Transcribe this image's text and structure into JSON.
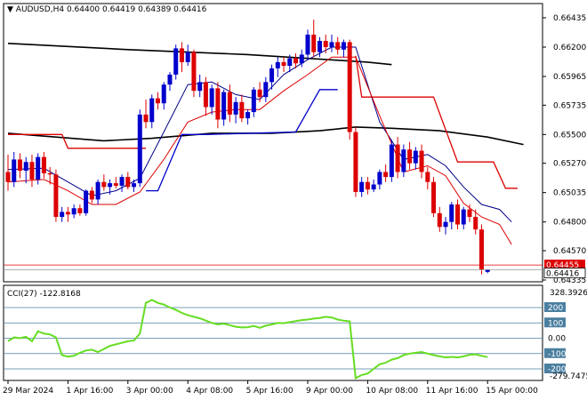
{
  "chart_data": {
    "type": "candlestick",
    "symbol_label": "AUDUSD,H4",
    "ohlc_readout": "0.64400 0.64419 0.64389 0.64416",
    "price_axis": {
      "ylim": [
        0.64335,
        0.66475
      ],
      "ticks": [
        "0.66435",
        "0.66200",
        "0.65965",
        "0.65735",
        "0.65500",
        "0.65270",
        "0.65035",
        "0.64800",
        "0.64570",
        "0.64335"
      ],
      "tick_values": [
        0.66435,
        0.662,
        0.65965,
        0.65735,
        0.655,
        0.6527,
        0.65035,
        0.648,
        0.6457,
        0.64335
      ],
      "last_price_label": "0.64416",
      "ref_price_label": "0.64455",
      "last_price": 0.64416,
      "ref_price": 0.64455
    },
    "time_axis": {
      "labels": [
        "29 Mar 2024",
        "1 Apr 16:00",
        "3 Apr 00:00",
        "4 Apr 08:00",
        "5 Apr 16:00",
        "9 Apr 00:00",
        "10 Apr 08:00",
        "11 Apr 16:00",
        "15 Apr 00:00"
      ],
      "label_bar_index": [
        0,
        10,
        20,
        30,
        40,
        50,
        60,
        70,
        80
      ]
    },
    "candles": [
      {
        "o": 0.652,
        "h": 0.6534,
        "l": 0.6505,
        "c": 0.6512
      },
      {
        "o": 0.6512,
        "h": 0.6536,
        "l": 0.6508,
        "c": 0.653
      },
      {
        "o": 0.653,
        "h": 0.6535,
        "l": 0.6515,
        "c": 0.6521
      },
      {
        "o": 0.6521,
        "h": 0.6532,
        "l": 0.6511,
        "c": 0.6528
      },
      {
        "o": 0.6528,
        "h": 0.6534,
        "l": 0.6508,
        "c": 0.6514
      },
      {
        "o": 0.6514,
        "h": 0.6535,
        "l": 0.651,
        "c": 0.6532
      },
      {
        "o": 0.6532,
        "h": 0.6536,
        "l": 0.6515,
        "c": 0.6519
      },
      {
        "o": 0.6519,
        "h": 0.6524,
        "l": 0.651,
        "c": 0.6518
      },
      {
        "o": 0.6518,
        "h": 0.6522,
        "l": 0.648,
        "c": 0.6484
      },
      {
        "o": 0.6484,
        "h": 0.6492,
        "l": 0.648,
        "c": 0.6488
      },
      {
        "o": 0.6488,
        "h": 0.6492,
        "l": 0.648,
        "c": 0.6486
      },
      {
        "o": 0.6486,
        "h": 0.6494,
        "l": 0.6483,
        "c": 0.6491
      },
      {
        "o": 0.6491,
        "h": 0.6494,
        "l": 0.6485,
        "c": 0.6487
      },
      {
        "o": 0.6487,
        "h": 0.6506,
        "l": 0.6485,
        "c": 0.6505
      },
      {
        "o": 0.6505,
        "h": 0.6508,
        "l": 0.6495,
        "c": 0.6498
      },
      {
        "o": 0.6498,
        "h": 0.6514,
        "l": 0.6494,
        "c": 0.6512
      },
      {
        "o": 0.6512,
        "h": 0.6518,
        "l": 0.6505,
        "c": 0.6508
      },
      {
        "o": 0.6508,
        "h": 0.6514,
        "l": 0.6502,
        "c": 0.6511
      },
      {
        "o": 0.6511,
        "h": 0.6516,
        "l": 0.6507,
        "c": 0.6509
      },
      {
        "o": 0.6509,
        "h": 0.6518,
        "l": 0.6504,
        "c": 0.6516
      },
      {
        "o": 0.6516,
        "h": 0.652,
        "l": 0.6506,
        "c": 0.6508
      },
      {
        "o": 0.6508,
        "h": 0.6514,
        "l": 0.6504,
        "c": 0.6511
      },
      {
        "o": 0.6511,
        "h": 0.657,
        "l": 0.6508,
        "c": 0.6566
      },
      {
        "o": 0.6566,
        "h": 0.6578,
        "l": 0.6555,
        "c": 0.656
      },
      {
        "o": 0.656,
        "h": 0.6582,
        "l": 0.6555,
        "c": 0.6579
      },
      {
        "o": 0.6579,
        "h": 0.6584,
        "l": 0.657,
        "c": 0.6575
      },
      {
        "o": 0.6575,
        "h": 0.6592,
        "l": 0.657,
        "c": 0.659
      },
      {
        "o": 0.659,
        "h": 0.66,
        "l": 0.6585,
        "c": 0.6598
      },
      {
        "o": 0.6598,
        "h": 0.6622,
        "l": 0.6594,
        "c": 0.6619
      },
      {
        "o": 0.6619,
        "h": 0.6624,
        "l": 0.66,
        "c": 0.6608
      },
      {
        "o": 0.6608,
        "h": 0.6622,
        "l": 0.6605,
        "c": 0.6616
      },
      {
        "o": 0.6616,
        "h": 0.6618,
        "l": 0.658,
        "c": 0.6585
      },
      {
        "o": 0.6585,
        "h": 0.6598,
        "l": 0.658,
        "c": 0.6592
      },
      {
        "o": 0.6592,
        "h": 0.6596,
        "l": 0.6565,
        "c": 0.6572
      },
      {
        "o": 0.6572,
        "h": 0.659,
        "l": 0.6566,
        "c": 0.6587
      },
      {
        "o": 0.6587,
        "h": 0.6592,
        "l": 0.6555,
        "c": 0.6562
      },
      {
        "o": 0.6562,
        "h": 0.6586,
        "l": 0.6557,
        "c": 0.6584
      },
      {
        "o": 0.6584,
        "h": 0.659,
        "l": 0.656,
        "c": 0.6566
      },
      {
        "o": 0.6566,
        "h": 0.658,
        "l": 0.6559,
        "c": 0.6576
      },
      {
        "o": 0.6576,
        "h": 0.6582,
        "l": 0.656,
        "c": 0.6563
      },
      {
        "o": 0.6563,
        "h": 0.657,
        "l": 0.6558,
        "c": 0.6568
      },
      {
        "o": 0.6568,
        "h": 0.6588,
        "l": 0.6564,
        "c": 0.6586
      },
      {
        "o": 0.6586,
        "h": 0.6592,
        "l": 0.6576,
        "c": 0.658
      },
      {
        "o": 0.658,
        "h": 0.6596,
        "l": 0.6576,
        "c": 0.6592
      },
      {
        "o": 0.6592,
        "h": 0.6606,
        "l": 0.6586,
        "c": 0.6603
      },
      {
        "o": 0.6603,
        "h": 0.6612,
        "l": 0.6596,
        "c": 0.6608
      },
      {
        "o": 0.6608,
        "h": 0.6612,
        "l": 0.66,
        "c": 0.6605
      },
      {
        "o": 0.6605,
        "h": 0.6614,
        "l": 0.66,
        "c": 0.6611
      },
      {
        "o": 0.6611,
        "h": 0.6615,
        "l": 0.6603,
        "c": 0.6607
      },
      {
        "o": 0.6607,
        "h": 0.6618,
        "l": 0.6604,
        "c": 0.6614
      },
      {
        "o": 0.6614,
        "h": 0.6634,
        "l": 0.661,
        "c": 0.663
      },
      {
        "o": 0.663,
        "h": 0.6642,
        "l": 0.6612,
        "c": 0.6616
      },
      {
        "o": 0.6616,
        "h": 0.6628,
        "l": 0.6612,
        "c": 0.6625
      },
      {
        "o": 0.6625,
        "h": 0.663,
        "l": 0.6615,
        "c": 0.662
      },
      {
        "o": 0.662,
        "h": 0.663,
        "l": 0.6616,
        "c": 0.6624
      },
      {
        "o": 0.6624,
        "h": 0.6628,
        "l": 0.6614,
        "c": 0.6618
      },
      {
        "o": 0.6618,
        "h": 0.6626,
        "l": 0.6612,
        "c": 0.6624
      },
      {
        "o": 0.6624,
        "h": 0.6626,
        "l": 0.6546,
        "c": 0.6552
      },
      {
        "o": 0.6552,
        "h": 0.6556,
        "l": 0.65,
        "c": 0.6504
      },
      {
        "o": 0.6504,
        "h": 0.6516,
        "l": 0.65,
        "c": 0.6512
      },
      {
        "o": 0.6512,
        "h": 0.6516,
        "l": 0.6502,
        "c": 0.6506
      },
      {
        "o": 0.6506,
        "h": 0.6514,
        "l": 0.6504,
        "c": 0.651
      },
      {
        "o": 0.651,
        "h": 0.6522,
        "l": 0.6506,
        "c": 0.652
      },
      {
        "o": 0.652,
        "h": 0.6526,
        "l": 0.6512,
        "c": 0.6516
      },
      {
        "o": 0.6516,
        "h": 0.6546,
        "l": 0.6512,
        "c": 0.6542
      },
      {
        "o": 0.6542,
        "h": 0.6548,
        "l": 0.6515,
        "c": 0.652
      },
      {
        "o": 0.652,
        "h": 0.6542,
        "l": 0.6516,
        "c": 0.6538
      },
      {
        "o": 0.6538,
        "h": 0.6544,
        "l": 0.6522,
        "c": 0.6527
      },
      {
        "o": 0.6527,
        "h": 0.654,
        "l": 0.6522,
        "c": 0.6537
      },
      {
        "o": 0.6537,
        "h": 0.6542,
        "l": 0.6515,
        "c": 0.652
      },
      {
        "o": 0.652,
        "h": 0.6524,
        "l": 0.6506,
        "c": 0.6512
      },
      {
        "o": 0.6512,
        "h": 0.6516,
        "l": 0.6484,
        "c": 0.6487
      },
      {
        "o": 0.6487,
        "h": 0.6492,
        "l": 0.6472,
        "c": 0.6476
      },
      {
        "o": 0.6476,
        "h": 0.6484,
        "l": 0.647,
        "c": 0.648
      },
      {
        "o": 0.648,
        "h": 0.6496,
        "l": 0.6474,
        "c": 0.6494
      },
      {
        "o": 0.6494,
        "h": 0.6498,
        "l": 0.6474,
        "c": 0.6478
      },
      {
        "o": 0.6478,
        "h": 0.6492,
        "l": 0.6474,
        "c": 0.649
      },
      {
        "o": 0.649,
        "h": 0.6494,
        "l": 0.648,
        "c": 0.6484
      },
      {
        "o": 0.6484,
        "h": 0.649,
        "l": 0.647,
        "c": 0.6474
      },
      {
        "o": 0.6474,
        "h": 0.6478,
        "l": 0.6438,
        "c": 0.6442
      },
      {
        "o": 0.644,
        "h": 0.6442,
        "l": 0.6439,
        "c": 0.6442
      }
    ],
    "overlays": [
      {
        "color": "#000000",
        "width": 1.6,
        "points": [
          [
            0,
            0.6623
          ],
          [
            20,
            0.6618
          ],
          [
            40,
            0.6614
          ],
          [
            60,
            0.6608
          ],
          [
            64,
            0.6606
          ]
        ]
      },
      {
        "color": "#000000",
        "width": 1.6,
        "points": [
          [
            0,
            0.6551
          ],
          [
            8,
            0.6548
          ],
          [
            16,
            0.6545
          ],
          [
            24,
            0.6547
          ],
          [
            34,
            0.6551
          ],
          [
            44,
            0.6551
          ],
          [
            52,
            0.6553
          ],
          [
            58,
            0.6556
          ],
          [
            64,
            0.6555
          ],
          [
            72,
            0.6553
          ],
          [
            80,
            0.6548
          ],
          [
            86,
            0.6542
          ]
        ]
      },
      {
        "color": "#dd0000",
        "width": 1.3,
        "points": [
          [
            0,
            0.655
          ],
          [
            9,
            0.655
          ],
          [
            10,
            0.6539
          ],
          [
            23,
            0.6539
          ]
        ]
      },
      {
        "color": "#dd0000",
        "width": 1.3,
        "points": [
          [
            58,
            0.6613
          ],
          [
            59,
            0.658
          ],
          [
            71,
            0.658
          ],
          [
            75,
            0.6528
          ],
          [
            81,
            0.6528
          ],
          [
            83,
            0.6507
          ],
          [
            85,
            0.6507
          ]
        ]
      },
      {
        "color": "#0000cc",
        "width": 1.3,
        "points": [
          [
            23,
            0.6505
          ],
          [
            25,
            0.6505
          ],
          [
            29,
            0.655
          ],
          [
            33,
            0.655
          ],
          [
            48,
            0.6552
          ],
          [
            52,
            0.6586
          ],
          [
            55,
            0.6586
          ]
        ]
      },
      {
        "color": "#000088",
        "width": 1,
        "points": [
          [
            0,
            0.6522
          ],
          [
            6,
            0.6523
          ],
          [
            10,
            0.6512
          ],
          [
            14,
            0.6501
          ],
          [
            18,
            0.6505
          ],
          [
            22,
            0.6515
          ],
          [
            26,
            0.6552
          ],
          [
            30,
            0.659
          ],
          [
            34,
            0.6592
          ],
          [
            38,
            0.6582
          ],
          [
            42,
            0.6578
          ],
          [
            46,
            0.6598
          ],
          [
            50,
            0.661
          ],
          [
            54,
            0.662
          ],
          [
            58,
            0.662
          ],
          [
            62,
            0.656
          ],
          [
            66,
            0.653
          ],
          [
            70,
            0.6534
          ],
          [
            73,
            0.6525
          ],
          [
            76,
            0.6508
          ],
          [
            79,
            0.6494
          ],
          [
            82,
            0.649
          ],
          [
            84,
            0.648
          ]
        ]
      },
      {
        "color": "#dd0000",
        "width": 1,
        "points": [
          [
            0,
            0.6512
          ],
          [
            6,
            0.6514
          ],
          [
            10,
            0.6505
          ],
          [
            14,
            0.6494
          ],
          [
            18,
            0.6494
          ],
          [
            22,
            0.6504
          ],
          [
            26,
            0.653
          ],
          [
            30,
            0.656
          ],
          [
            34,
            0.6568
          ],
          [
            38,
            0.657
          ],
          [
            42,
            0.657
          ],
          [
            46,
            0.6585
          ],
          [
            50,
            0.6598
          ],
          [
            54,
            0.6612
          ],
          [
            58,
            0.6612
          ],
          [
            62,
            0.6565
          ],
          [
            66,
            0.652
          ],
          [
            70,
            0.6525
          ],
          [
            73,
            0.6517
          ],
          [
            76,
            0.6495
          ],
          [
            79,
            0.6484
          ],
          [
            82,
            0.6478
          ],
          [
            84,
            0.6462
          ]
        ]
      }
    ],
    "cci": {
      "label": "CCI(27) -122.8168",
      "ylim": [
        -279.7475,
        328.3926
      ],
      "max_label": "328.3926",
      "min_label": "-279.7475",
      "levels": [
        200,
        100,
        0,
        -100,
        -200
      ],
      "level_labels": [
        "200",
        "100",
        "0.00",
        "-100",
        "-200"
      ],
      "values": [
        -20,
        5,
        0,
        10,
        -20,
        45,
        30,
        25,
        5,
        -110,
        -120,
        -115,
        -95,
        -80,
        -75,
        -90,
        -70,
        -50,
        -40,
        -30,
        -20,
        -15,
        30,
        230,
        250,
        230,
        220,
        200,
        185,
        165,
        150,
        140,
        130,
        115,
        100,
        90,
        95,
        85,
        75,
        70,
        72,
        80,
        68,
        82,
        90,
        100,
        98,
        105,
        112,
        118,
        122,
        128,
        132,
        140,
        135,
        122,
        114,
        110,
        -260,
        -240,
        -230,
        -200,
        -170,
        -160,
        -140,
        -130,
        -110,
        -100,
        -95,
        -90,
        -100,
        -110,
        -118,
        -125,
        -122,
        -125,
        -118,
        -108,
        -105,
        -115,
        -123
      ]
    },
    "colors": {
      "bull": "#0000cc",
      "bear": "#dd0000",
      "cci": "#66dd22",
      "level": "#4a7fa0",
      "price_tag": "#dd0000"
    }
  }
}
